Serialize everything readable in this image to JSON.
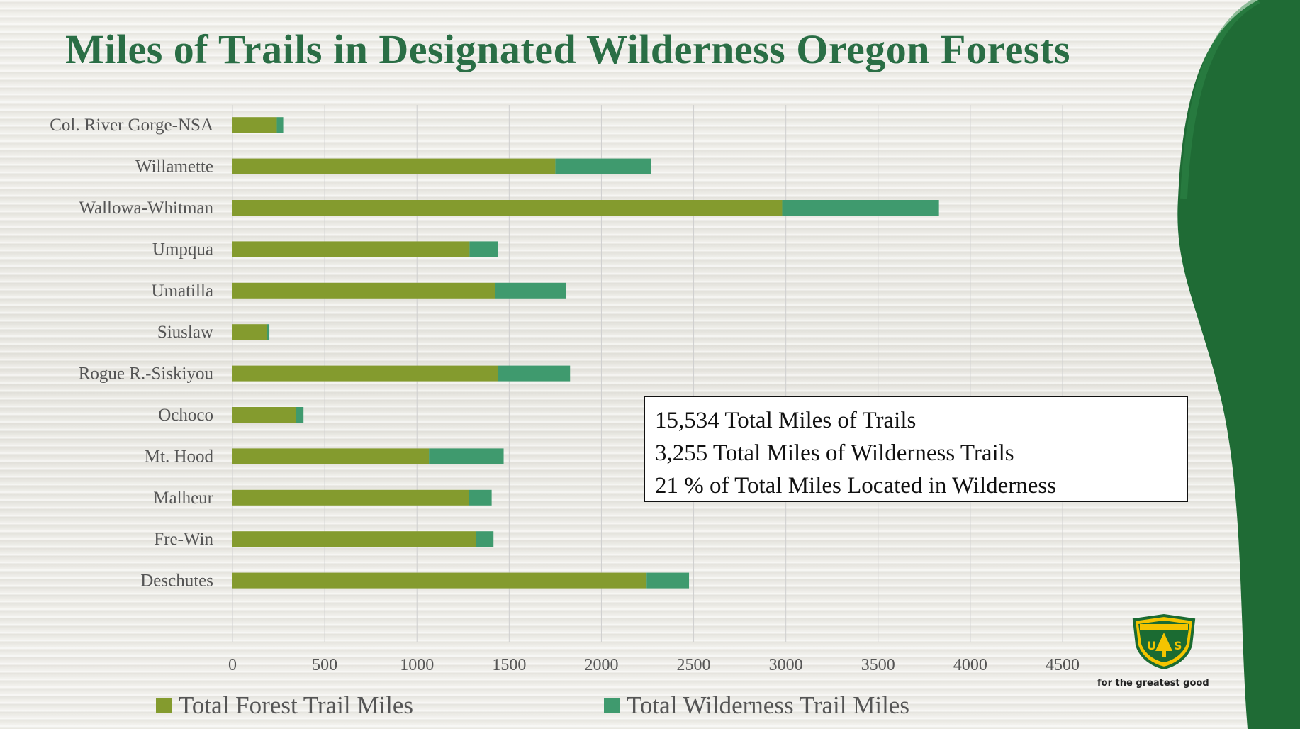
{
  "slide": {
    "title": "Miles of Trails in Designated Wilderness Oregon Forests",
    "brand_color": "#2a6e45",
    "wave_color": "#1f6b35"
  },
  "stats": {
    "line1": "15,534 Total Miles of Trails",
    "line2": "3,255 Total Miles of Wilderness Trails",
    "line3": "21 % of Total Miles Located in Wilderness"
  },
  "logo": {
    "icon": "forest-service-shield-icon",
    "tagline": "for the greatest good"
  },
  "chart_data": {
    "type": "bar",
    "orientation": "horizontal",
    "stacked": true,
    "categories": [
      "Col. River Gorge-NSA",
      "Willamette",
      "Wallowa-Whitman",
      "Umpqua",
      "Umatilla",
      "Siuslaw",
      "Rogue R.-Siskiyou",
      "Ochoco",
      "Mt. Hood",
      "Malheur",
      "Fre-Win",
      "Deschutes"
    ],
    "series": [
      {
        "name": "Total Forest Trail Miles",
        "color": "#849b2e",
        "values": [
          240,
          1750,
          2980,
          1285,
          1425,
          185,
          1440,
          345,
          1065,
          1280,
          1320,
          2245
        ]
      },
      {
        "name": "Total Wilderness Trail Miles",
        "color": "#3f9a6e",
        "values": [
          35,
          520,
          850,
          155,
          385,
          15,
          390,
          40,
          405,
          125,
          95,
          230
        ]
      }
    ],
    "xlim": [
      0,
      4500
    ],
    "xticks": [
      "0",
      "500",
      "1000",
      "1500",
      "2000",
      "2500",
      "3000",
      "3500",
      "4000",
      "4500"
    ],
    "grid": true,
    "legend_position": "bottom"
  }
}
